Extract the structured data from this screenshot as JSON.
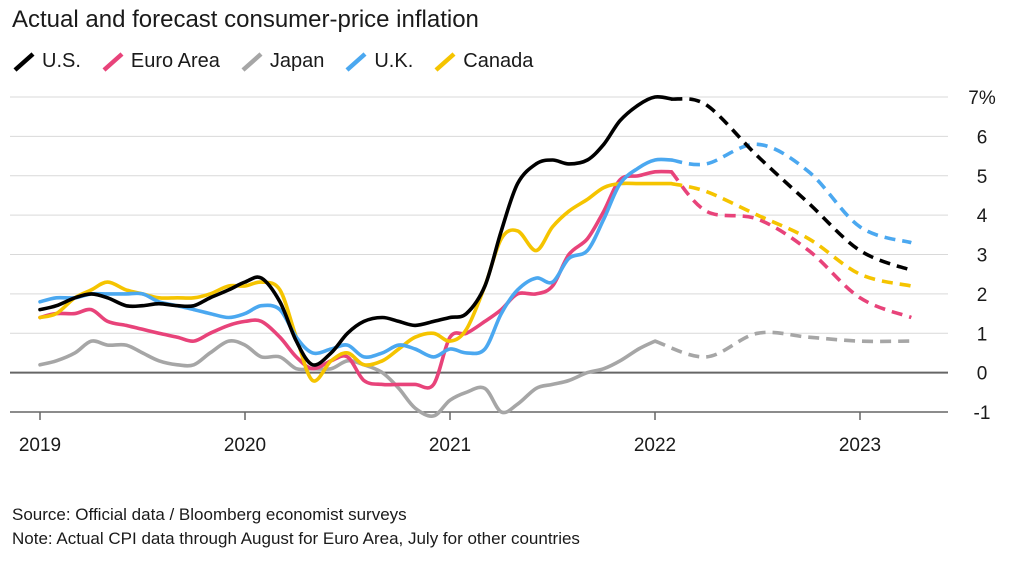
{
  "chart_data": {
    "type": "line",
    "title": "Actual and forecast consumer-price inflation",
    "xlabel": "",
    "ylabel": "",
    "x_ticks": [
      {
        "value": 2019,
        "label": "2019"
      },
      {
        "value": 2020,
        "label": "2020"
      },
      {
        "value": 2021,
        "label": "2021"
      },
      {
        "value": 2022,
        "label": "2022"
      },
      {
        "value": 2023,
        "label": "2023"
      }
    ],
    "xlim": [
      2019,
      2023.4
    ],
    "ylim": [
      -1,
      7
    ],
    "y_ticks": [
      {
        "value": 7,
        "label": "7%"
      },
      {
        "value": 6,
        "label": "6"
      },
      {
        "value": 5,
        "label": "5"
      },
      {
        "value": 4,
        "label": "4"
      },
      {
        "value": 3,
        "label": "3"
      },
      {
        "value": 2,
        "label": "2"
      },
      {
        "value": 1,
        "label": "1"
      },
      {
        "value": 0,
        "label": "0"
      },
      {
        "value": -1,
        "label": "-1"
      }
    ],
    "grid": true,
    "legend_position": "top-left",
    "series": [
      {
        "name": "U.S.",
        "color": "#000000",
        "actual": [
          [
            2019,
            1.6
          ],
          [
            2019.08,
            1.7
          ],
          [
            2019.17,
            1.9
          ],
          [
            2019.25,
            2.0
          ],
          [
            2019.33,
            1.9
          ],
          [
            2019.42,
            1.7
          ],
          [
            2019.5,
            1.7
          ],
          [
            2019.58,
            1.75
          ],
          [
            2019.67,
            1.7
          ],
          [
            2019.75,
            1.7
          ],
          [
            2019.83,
            1.9
          ],
          [
            2019.92,
            2.1
          ],
          [
            2020,
            2.3
          ],
          [
            2020.08,
            2.4
          ],
          [
            2020.17,
            1.8
          ],
          [
            2020.25,
            0.8
          ],
          [
            2020.33,
            0.2
          ],
          [
            2020.42,
            0.5
          ],
          [
            2020.5,
            1.0
          ],
          [
            2020.58,
            1.3
          ],
          [
            2020.67,
            1.4
          ],
          [
            2020.75,
            1.3
          ],
          [
            2020.83,
            1.2
          ],
          [
            2020.92,
            1.3
          ],
          [
            2021,
            1.4
          ],
          [
            2021.08,
            1.5
          ],
          [
            2021.17,
            2.2
          ],
          [
            2021.25,
            3.6
          ],
          [
            2021.33,
            4.8
          ],
          [
            2021.42,
            5.3
          ],
          [
            2021.5,
            5.4
          ],
          [
            2021.58,
            5.3
          ],
          [
            2021.67,
            5.4
          ],
          [
            2021.75,
            5.8
          ],
          [
            2021.83,
            6.4
          ],
          [
            2021.92,
            6.8
          ],
          [
            2022,
            7.0
          ],
          [
            2022.08,
            6.95
          ]
        ],
        "forecast": [
          [
            2022.08,
            6.95
          ],
          [
            2022.25,
            6.8
          ],
          [
            2022.5,
            5.5
          ],
          [
            2022.75,
            4.3
          ],
          [
            2023,
            3.1
          ],
          [
            2023.25,
            2.6
          ]
        ]
      },
      {
        "name": "Euro Area",
        "color": "#e8437a",
        "actual": [
          [
            2019,
            1.4
          ],
          [
            2019.08,
            1.5
          ],
          [
            2019.17,
            1.5
          ],
          [
            2019.25,
            1.6
          ],
          [
            2019.33,
            1.3
          ],
          [
            2019.42,
            1.2
          ],
          [
            2019.5,
            1.1
          ],
          [
            2019.58,
            1.0
          ],
          [
            2019.67,
            0.9
          ],
          [
            2019.75,
            0.8
          ],
          [
            2019.83,
            1.0
          ],
          [
            2019.92,
            1.2
          ],
          [
            2020,
            1.3
          ],
          [
            2020.08,
            1.3
          ],
          [
            2020.17,
            0.9
          ],
          [
            2020.25,
            0.4
          ],
          [
            2020.33,
            0.1
          ],
          [
            2020.42,
            0.3
          ],
          [
            2020.5,
            0.4
          ],
          [
            2020.58,
            -0.2
          ],
          [
            2020.67,
            -0.3
          ],
          [
            2020.75,
            -0.3
          ],
          [
            2020.83,
            -0.3
          ],
          [
            2020.92,
            -0.3
          ],
          [
            2021,
            0.9
          ],
          [
            2021.08,
            1.0
          ],
          [
            2021.17,
            1.3
          ],
          [
            2021.25,
            1.6
          ],
          [
            2021.33,
            2.0
          ],
          [
            2021.42,
            2.0
          ],
          [
            2021.5,
            2.2
          ],
          [
            2021.58,
            3.0
          ],
          [
            2021.67,
            3.4
          ],
          [
            2021.75,
            4.1
          ],
          [
            2021.83,
            4.9
          ],
          [
            2021.92,
            5.0
          ],
          [
            2022,
            5.1
          ],
          [
            2022.08,
            5.1
          ]
        ],
        "forecast": [
          [
            2022.08,
            5.1
          ],
          [
            2022.25,
            4.1
          ],
          [
            2022.5,
            3.9
          ],
          [
            2022.75,
            3.1
          ],
          [
            2023,
            1.9
          ],
          [
            2023.25,
            1.4
          ]
        ]
      },
      {
        "name": "Japan",
        "color": "#a6a6a6",
        "actual": [
          [
            2019,
            0.2
          ],
          [
            2019.08,
            0.3
          ],
          [
            2019.17,
            0.5
          ],
          [
            2019.25,
            0.8
          ],
          [
            2019.33,
            0.7
          ],
          [
            2019.42,
            0.7
          ],
          [
            2019.5,
            0.5
          ],
          [
            2019.58,
            0.3
          ],
          [
            2019.67,
            0.2
          ],
          [
            2019.75,
            0.2
          ],
          [
            2019.83,
            0.5
          ],
          [
            2019.92,
            0.8
          ],
          [
            2020,
            0.7
          ],
          [
            2020.08,
            0.4
          ],
          [
            2020.17,
            0.4
          ],
          [
            2020.25,
            0.1
          ],
          [
            2020.33,
            0.1
          ],
          [
            2020.42,
            0.1
          ],
          [
            2020.5,
            0.3
          ],
          [
            2020.58,
            0.2
          ],
          [
            2020.67,
            0.0
          ],
          [
            2020.75,
            -0.4
          ],
          [
            2020.83,
            -0.9
          ],
          [
            2020.92,
            -1.1
          ],
          [
            2021,
            -0.7
          ],
          [
            2021.08,
            -0.5
          ],
          [
            2021.17,
            -0.4
          ],
          [
            2021.25,
            -1.0
          ],
          [
            2021.33,
            -0.8
          ],
          [
            2021.42,
            -0.4
          ],
          [
            2021.5,
            -0.3
          ],
          [
            2021.58,
            -0.2
          ],
          [
            2021.67,
            0.0
          ],
          [
            2021.75,
            0.1
          ],
          [
            2021.83,
            0.3
          ],
          [
            2021.92,
            0.6
          ],
          [
            2022,
            0.8
          ]
        ],
        "forecast": [
          [
            2022,
            0.8
          ],
          [
            2022.25,
            0.4
          ],
          [
            2022.5,
            1.0
          ],
          [
            2022.75,
            0.9
          ],
          [
            2023,
            0.8
          ],
          [
            2023.25,
            0.8
          ]
        ]
      },
      {
        "name": "U.K.",
        "color": "#4ba8f0",
        "actual": [
          [
            2019,
            1.8
          ],
          [
            2019.08,
            1.9
          ],
          [
            2019.17,
            1.9
          ],
          [
            2019.25,
            2.0
          ],
          [
            2019.33,
            2.0
          ],
          [
            2019.42,
            2.0
          ],
          [
            2019.5,
            2.0
          ],
          [
            2019.58,
            1.8
          ],
          [
            2019.67,
            1.7
          ],
          [
            2019.75,
            1.6
          ],
          [
            2019.83,
            1.5
          ],
          [
            2019.92,
            1.4
          ],
          [
            2020,
            1.5
          ],
          [
            2020.08,
            1.7
          ],
          [
            2020.17,
            1.6
          ],
          [
            2020.25,
            0.9
          ],
          [
            2020.33,
            0.5
          ],
          [
            2020.42,
            0.6
          ],
          [
            2020.5,
            0.7
          ],
          [
            2020.58,
            0.4
          ],
          [
            2020.67,
            0.5
          ],
          [
            2020.75,
            0.7
          ],
          [
            2020.83,
            0.6
          ],
          [
            2020.92,
            0.4
          ],
          [
            2021,
            0.6
          ],
          [
            2021.08,
            0.5
          ],
          [
            2021.17,
            0.6
          ],
          [
            2021.25,
            1.5
          ],
          [
            2021.33,
            2.1
          ],
          [
            2021.42,
            2.4
          ],
          [
            2021.5,
            2.3
          ],
          [
            2021.58,
            2.9
          ],
          [
            2021.67,
            3.1
          ],
          [
            2021.75,
            3.9
          ],
          [
            2021.83,
            4.8
          ],
          [
            2021.92,
            5.2
          ],
          [
            2022,
            5.4
          ],
          [
            2022.08,
            5.4
          ]
        ],
        "forecast": [
          [
            2022.08,
            5.4
          ],
          [
            2022.25,
            5.3
          ],
          [
            2022.5,
            5.8
          ],
          [
            2022.75,
            5.1
          ],
          [
            2023,
            3.7
          ],
          [
            2023.25,
            3.3
          ]
        ]
      },
      {
        "name": "Canada",
        "color": "#f5c400",
        "actual": [
          [
            2019,
            1.4
          ],
          [
            2019.08,
            1.5
          ],
          [
            2019.17,
            1.9
          ],
          [
            2019.25,
            2.1
          ],
          [
            2019.33,
            2.3
          ],
          [
            2019.42,
            2.1
          ],
          [
            2019.5,
            2.0
          ],
          [
            2019.58,
            1.9
          ],
          [
            2019.67,
            1.9
          ],
          [
            2019.75,
            1.9
          ],
          [
            2019.83,
            2.0
          ],
          [
            2019.92,
            2.2
          ],
          [
            2020,
            2.2
          ],
          [
            2020.08,
            2.3
          ],
          [
            2020.17,
            2.1
          ],
          [
            2020.25,
            0.9
          ],
          [
            2020.33,
            -0.2
          ],
          [
            2020.42,
            0.3
          ],
          [
            2020.5,
            0.5
          ],
          [
            2020.58,
            0.2
          ],
          [
            2020.67,
            0.3
          ],
          [
            2020.75,
            0.6
          ],
          [
            2020.83,
            0.9
          ],
          [
            2020.92,
            1.0
          ],
          [
            2021,
            0.8
          ],
          [
            2021.08,
            1.1
          ],
          [
            2021.17,
            2.2
          ],
          [
            2021.25,
            3.4
          ],
          [
            2021.33,
            3.6
          ],
          [
            2021.42,
            3.1
          ],
          [
            2021.5,
            3.7
          ],
          [
            2021.58,
            4.1
          ],
          [
            2021.67,
            4.4
          ],
          [
            2021.75,
            4.7
          ],
          [
            2021.83,
            4.8
          ],
          [
            2021.92,
            4.8
          ],
          [
            2022,
            4.8
          ],
          [
            2022.08,
            4.8
          ]
        ],
        "forecast": [
          [
            2022.08,
            4.8
          ],
          [
            2022.25,
            4.6
          ],
          [
            2022.5,
            4.0
          ],
          [
            2022.75,
            3.4
          ],
          [
            2023,
            2.5
          ],
          [
            2023.25,
            2.2
          ]
        ]
      }
    ]
  },
  "footnotes": {
    "source": "Source: Official data / Bloomberg economist surveys",
    "note": "Note: Actual CPI data through August for Euro Area, July for other countries"
  }
}
